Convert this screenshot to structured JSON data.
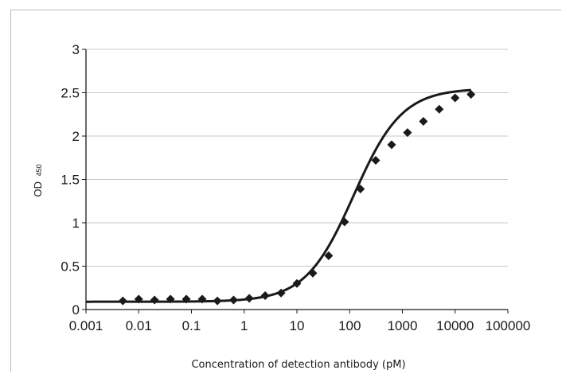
{
  "chart_data": {
    "type": "scatter",
    "xscale": "log",
    "xlabel": "Concentration of detection antibody (pM)",
    "ylabel_main": "OD",
    "ylabel_sub": "450",
    "xlim": [
      0.001,
      100000
    ],
    "ylim": [
      0,
      3
    ],
    "x_ticks": [
      "0.001",
      "0.01",
      "0.1",
      "1",
      "10",
      "100",
      "1000",
      "10000",
      "100000"
    ],
    "y_ticks": [
      "0",
      "0.5",
      "1",
      "1.5",
      "2",
      "2.5",
      "3"
    ],
    "grid": "horizontal",
    "legend": "none",
    "series": [
      {
        "marker": "diamond",
        "x": [
          0.005,
          0.01,
          0.02,
          0.04,
          0.08,
          0.16,
          0.31,
          0.63,
          1.25,
          2.5,
          5,
          10,
          20,
          40,
          80,
          160,
          312,
          625,
          1250,
          2500,
          5000,
          10000,
          20000
        ],
        "y": [
          0.1,
          0.12,
          0.11,
          0.12,
          0.12,
          0.12,
          0.1,
          0.11,
          0.13,
          0.16,
          0.19,
          0.3,
          0.42,
          0.62,
          1.01,
          1.39,
          1.72,
          1.9,
          2.04,
          2.17,
          2.31,
          2.44,
          2.48
        ]
      }
    ],
    "fit_curve": {
      "type": "4PL",
      "bottom": 0.09,
      "top": 2.55,
      "ec50": 120,
      "hill": 0.95
    },
    "colors": {
      "marker": "#1a1a1a",
      "curve": "#1a1a1a",
      "grid": "#c8c8c8",
      "axis": "#1a1a1a"
    }
  }
}
